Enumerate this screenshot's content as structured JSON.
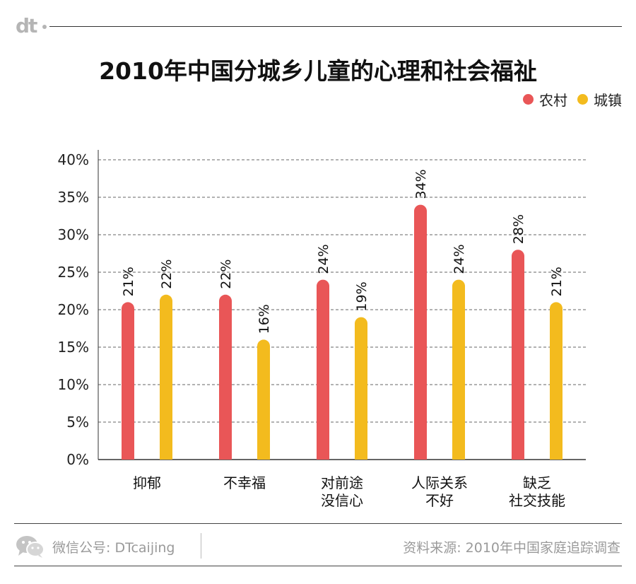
{
  "brand": {
    "logo_text": "dt"
  },
  "chart_data": {
    "type": "bar",
    "title": "2010年中国分城乡儿童的心理和社会福祉",
    "categories": [
      [
        "抑郁"
      ],
      [
        "不幸福"
      ],
      [
        "对前途",
        "没信心"
      ],
      [
        "人际关系",
        "不好"
      ],
      [
        "缺乏",
        "社交技能"
      ]
    ],
    "series": [
      {
        "name": "农村",
        "color": "#e95657",
        "values": [
          21,
          22,
          24,
          34,
          28
        ]
      },
      {
        "name": "城镇",
        "color": "#f3bb1e",
        "values": [
          22,
          16,
          19,
          24,
          21
        ]
      }
    ],
    "ylim": [
      0,
      40
    ],
    "yticks": [
      0,
      5,
      10,
      15,
      20,
      25,
      30,
      35,
      40
    ],
    "tick_suffix": "%",
    "grid": true,
    "legend_position": "top-right"
  },
  "footer": {
    "account": "微信公号: DTcaijing",
    "source": "资料来源: 2010年中国家庭追踪调查"
  }
}
